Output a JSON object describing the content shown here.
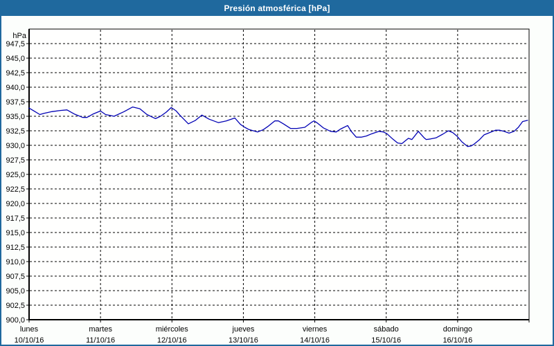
{
  "window": {
    "title": "Presión atmosférica [hPa]"
  },
  "colors": {
    "titlebar": "#1f699e",
    "window_border": "#1f699e",
    "background": "#fcfefc",
    "plot_background": "#fffffe",
    "grid": "#000000",
    "axis": "#000000",
    "line": "#0000b4",
    "title_text": "#ffffff",
    "label_text": "#000000"
  },
  "chart_data": {
    "type": "line",
    "title": "Presión atmosférica [hPa]",
    "grid": "dashed",
    "legend_position": "none",
    "y_axis": {
      "unit_label": "hPa",
      "min": 900,
      "max": 950,
      "tick_step": 2.5,
      "decimal_style": "comma",
      "tick_labels_top_to_bottom": [
        "947,5",
        "945,0",
        "942,5",
        "940,0",
        "937,5",
        "935,0",
        "932,5",
        "930,0",
        "927,5",
        "925,0",
        "922,5",
        "920,0",
        "917,5",
        "915,0",
        "912,5",
        "910,0",
        "907,5",
        "905,0",
        "902,5",
        "900,0"
      ]
    },
    "x_axis": {
      "range_days": 7,
      "days": [
        {
          "name": "lunes",
          "date": "10/10/16"
        },
        {
          "name": "martes",
          "date": "11/10/16"
        },
        {
          "name": "miércoles",
          "date": "12/10/16"
        },
        {
          "name": "jueves",
          "date": "13/10/16"
        },
        {
          "name": "viernes",
          "date": "14/10/16"
        },
        {
          "name": "sábado",
          "date": "15/10/16"
        },
        {
          "name": "domingo",
          "date": "16/10/16"
        }
      ]
    },
    "series": [
      {
        "name": "Presión atmosférica",
        "color": "#0000b4",
        "points_day_hpa": [
          [
            0.0,
            936.4
          ],
          [
            0.07,
            935.9
          ],
          [
            0.15,
            935.3
          ],
          [
            0.21,
            935.5
          ],
          [
            0.32,
            935.8
          ],
          [
            0.44,
            936.0
          ],
          [
            0.53,
            936.1
          ],
          [
            0.63,
            935.4
          ],
          [
            0.75,
            934.8
          ],
          [
            0.81,
            934.8
          ],
          [
            0.9,
            935.4
          ],
          [
            1.0,
            935.9
          ],
          [
            1.07,
            935.3
          ],
          [
            1.19,
            935.0
          ],
          [
            1.33,
            935.8
          ],
          [
            1.45,
            936.6
          ],
          [
            1.55,
            936.3
          ],
          [
            1.65,
            935.3
          ],
          [
            1.77,
            934.6
          ],
          [
            1.84,
            935.0
          ],
          [
            1.92,
            935.7
          ],
          [
            1.99,
            936.5
          ],
          [
            2.06,
            935.9
          ],
          [
            2.11,
            935.2
          ],
          [
            2.23,
            933.7
          ],
          [
            2.33,
            934.3
          ],
          [
            2.42,
            935.2
          ],
          [
            2.52,
            934.5
          ],
          [
            2.65,
            933.9
          ],
          [
            2.76,
            934.2
          ],
          [
            2.88,
            934.7
          ],
          [
            2.96,
            933.6
          ],
          [
            3.02,
            933.1
          ],
          [
            3.08,
            932.7
          ],
          [
            3.2,
            932.3
          ],
          [
            3.28,
            932.7
          ],
          [
            3.35,
            933.3
          ],
          [
            3.44,
            934.2
          ],
          [
            3.49,
            934.2
          ],
          [
            3.56,
            933.7
          ],
          [
            3.66,
            932.9
          ],
          [
            3.75,
            932.9
          ],
          [
            3.86,
            933.1
          ],
          [
            3.96,
            934.0
          ],
          [
            3.99,
            934.2
          ],
          [
            4.04,
            933.8
          ],
          [
            4.12,
            933.0
          ],
          [
            4.22,
            932.4
          ],
          [
            4.3,
            932.3
          ],
          [
            4.36,
            932.8
          ],
          [
            4.46,
            933.4
          ],
          [
            4.51,
            932.4
          ],
          [
            4.58,
            931.4
          ],
          [
            4.65,
            931.4
          ],
          [
            4.72,
            931.6
          ],
          [
            4.8,
            932.0
          ],
          [
            4.9,
            932.4
          ],
          [
            4.96,
            932.3
          ],
          [
            5.01,
            932.0
          ],
          [
            5.09,
            931.1
          ],
          [
            5.16,
            930.4
          ],
          [
            5.22,
            930.3
          ],
          [
            5.26,
            930.7
          ],
          [
            5.31,
            931.2
          ],
          [
            5.36,
            931.0
          ],
          [
            5.45,
            932.4
          ],
          [
            5.53,
            931.3
          ],
          [
            5.56,
            931.0
          ],
          [
            5.62,
            931.1
          ],
          [
            5.7,
            931.3
          ],
          [
            5.79,
            931.9
          ],
          [
            5.87,
            932.5
          ],
          [
            5.93,
            932.2
          ],
          [
            5.99,
            931.6
          ],
          [
            6.06,
            930.6
          ],
          [
            6.14,
            929.8
          ],
          [
            6.19,
            929.9
          ],
          [
            6.23,
            930.2
          ],
          [
            6.3,
            930.9
          ],
          [
            6.37,
            931.8
          ],
          [
            6.45,
            932.2
          ],
          [
            6.53,
            932.6
          ],
          [
            6.59,
            932.6
          ],
          [
            6.65,
            932.4
          ],
          [
            6.72,
            932.1
          ],
          [
            6.79,
            932.4
          ],
          [
            6.85,
            933.1
          ],
          [
            6.91,
            934.1
          ],
          [
            6.98,
            934.3
          ]
        ]
      }
    ]
  }
}
